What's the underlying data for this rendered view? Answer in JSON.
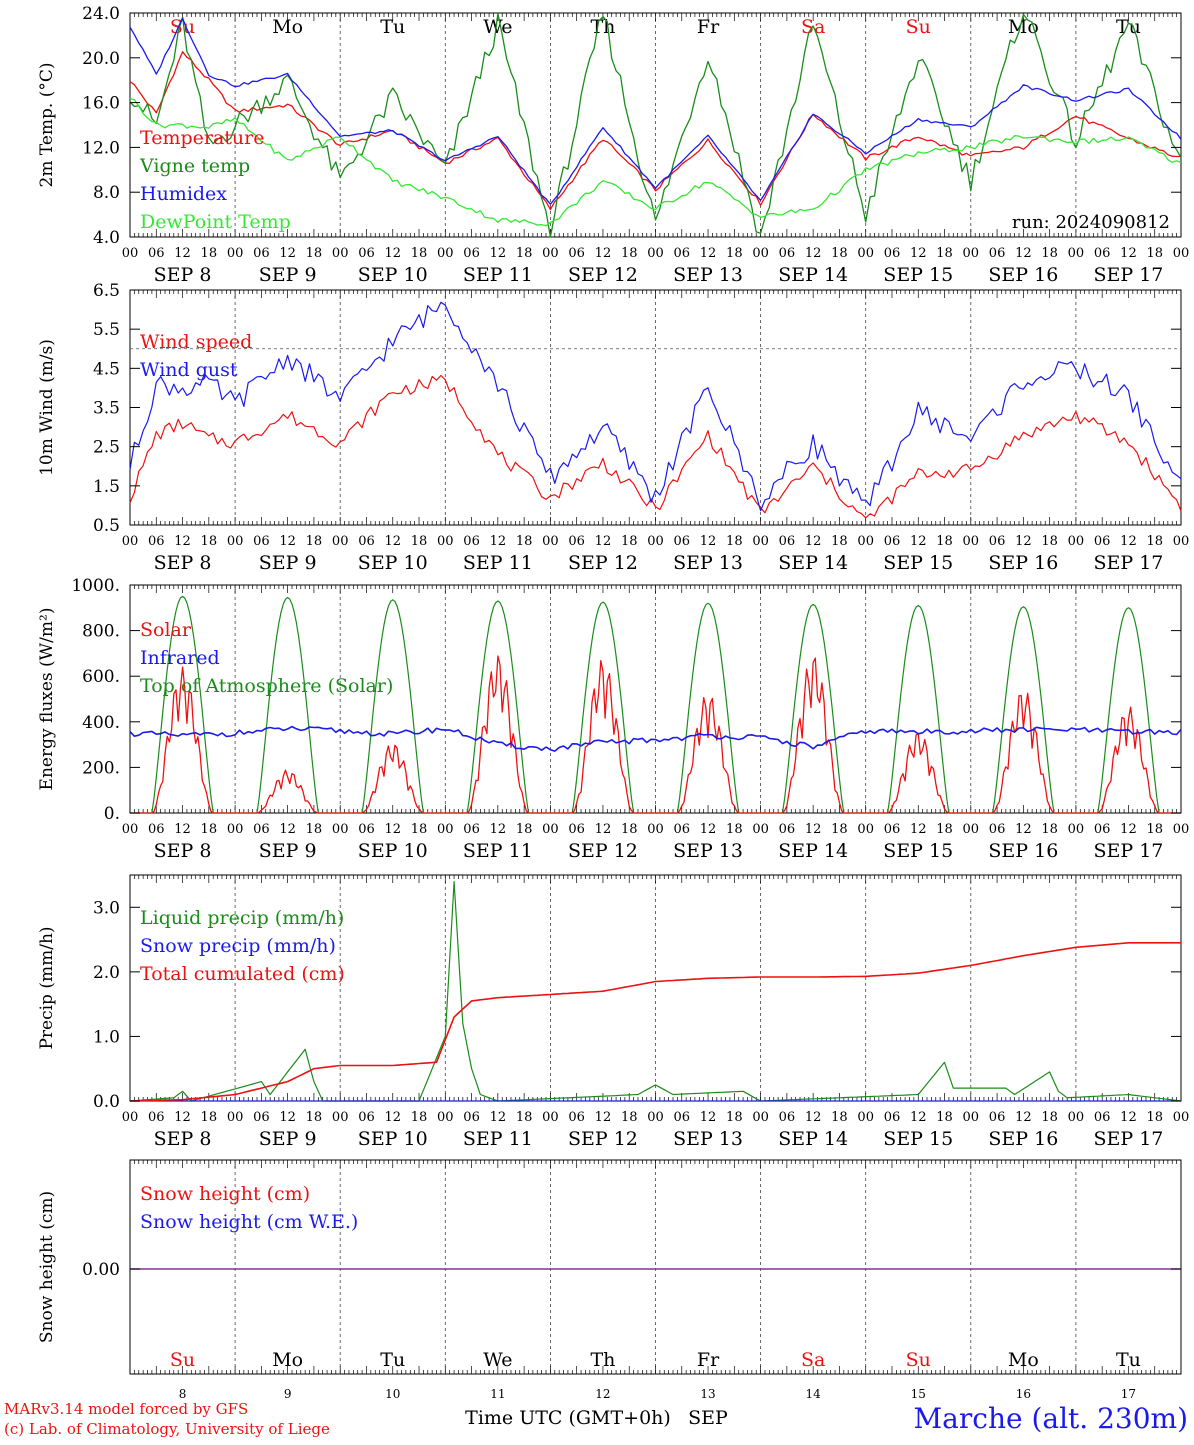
{
  "colors": {
    "red": "#ee1111",
    "green": "#1a8c1a",
    "blue": "#1a1aee",
    "lightgreen": "#33e833",
    "purple": "#8030a0",
    "axis": "#000000"
  },
  "day_abbrev": [
    "Su",
    "Mo",
    "Tu",
    "We",
    "Th",
    "Fr",
    "Sa",
    "Su",
    "Mo",
    "Tu"
  ],
  "day_abbrev_colors": [
    "red",
    "black",
    "black",
    "black",
    "black",
    "black",
    "red",
    "red",
    "black",
    "black"
  ],
  "date_labels": [
    "SEP  8",
    "SEP  9",
    "SEP 10",
    "SEP 11",
    "SEP 12",
    "SEP 13",
    "SEP 14",
    "SEP 15",
    "SEP 16",
    "SEP 17"
  ],
  "day_numbers": [
    "8",
    "9",
    "10",
    "11",
    "12",
    "13",
    "14",
    "15",
    "16",
    "17"
  ],
  "hour_ticks": [
    "00",
    "06",
    "12",
    "18"
  ],
  "hour_end": "00",
  "footer": {
    "credit_line1": "MARv3.14 model forced by GFS",
    "credit_line2": "(c) Lab. of Climatology, University of Liege",
    "time_axis_label": "Time UTC (GMT+0h)",
    "month_label": "SEP",
    "station": "Marche (alt. 230m)"
  },
  "chart_data": [
    {
      "type": "line",
      "ylabel": "2m Temp. (°C)",
      "ylim": [
        4,
        24
      ],
      "yticks": [
        "4.0",
        "8.0",
        "12.0",
        "16.0",
        "20.0",
        "24.0"
      ],
      "run_label": "run: 2024090812",
      "x_unit": "hours since SEP 8 00 UTC",
      "series": [
        {
          "name": "Temperature",
          "color": "red",
          "x": [
            0,
            6,
            12,
            18,
            24,
            36,
            48,
            60,
            72,
            84,
            96,
            108,
            120,
            132,
            144,
            156,
            168,
            180,
            192,
            204,
            216,
            228,
            240
          ],
          "values": [
            18,
            15,
            20.5,
            18,
            15.2,
            15.8,
            12.2,
            13.5,
            10.6,
            12.8,
            6.5,
            12.8,
            8.2,
            12.6,
            7,
            15,
            11,
            13,
            11.2,
            12,
            14.8,
            12.8,
            11
          ]
        },
        {
          "name": "Vigne temp",
          "color": "green",
          "x": [
            0,
            6,
            12,
            18,
            24,
            36,
            48,
            60,
            72,
            84,
            96,
            108,
            120,
            132,
            144,
            156,
            168,
            180,
            192,
            204,
            216,
            228,
            240
          ],
          "values": [
            17,
            14,
            23,
            12,
            14,
            18,
            9,
            16.5,
            10,
            23,
            4.5,
            24,
            5.2,
            20.5,
            4,
            23,
            6,
            20,
            9,
            24.5,
            12.5,
            23,
            10.5
          ]
        },
        {
          "name": "Humidex",
          "color": "blue",
          "x": [
            0,
            6,
            12,
            18,
            24,
            36,
            48,
            60,
            72,
            84,
            96,
            108,
            120,
            132,
            144,
            156,
            168,
            180,
            192,
            204,
            216,
            228,
            240
          ],
          "values": [
            22.8,
            18.5,
            23.5,
            18.5,
            17.5,
            18.5,
            13,
            13.5,
            10.8,
            13,
            6.8,
            13.8,
            8.4,
            13,
            7.2,
            15,
            11.5,
            14.5,
            13.8,
            17.5,
            16.2,
            17.2,
            12.8
          ]
        },
        {
          "name": "DewPoint Temp",
          "color": "lightgreen",
          "x": [
            0,
            6,
            12,
            18,
            24,
            36,
            48,
            60,
            72,
            84,
            96,
            108,
            120,
            132,
            144,
            156,
            168,
            180,
            192,
            204,
            216,
            228,
            240
          ],
          "values": [
            16.5,
            14,
            14,
            13.8,
            14.5,
            10.8,
            13,
            9,
            7.5,
            5.5,
            5.2,
            9,
            6.5,
            9,
            5.8,
            6.5,
            10,
            11.5,
            12,
            13,
            12.5,
            12.8,
            10.5
          ]
        }
      ]
    },
    {
      "type": "line",
      "ylabel": "10m Wind (m/s)",
      "ylim": [
        0.5,
        6.5
      ],
      "yticks": [
        "0.5",
        "1.5",
        "2.5",
        "3.5",
        "4.5",
        "5.5",
        "6.5"
      ],
      "reference_line": 5.0,
      "x_unit": "hours since SEP 8 00 UTC",
      "series": [
        {
          "name": "Wind speed",
          "color": "red",
          "x": [
            0,
            6,
            12,
            18,
            24,
            36,
            48,
            60,
            72,
            84,
            96,
            108,
            120,
            132,
            144,
            156,
            168,
            180,
            192,
            204,
            216,
            228,
            240
          ],
          "values": [
            1.2,
            2.8,
            3.1,
            2.7,
            2.6,
            3.3,
            2.6,
            3.9,
            4.2,
            2.3,
            1.2,
            2.1,
            0.9,
            2.8,
            0.8,
            2.0,
            0.6,
            1.8,
            1.9,
            2.8,
            3.3,
            2.6,
            1.0
          ]
        },
        {
          "name": "Wind gust",
          "color": "blue",
          "x": [
            0,
            6,
            12,
            18,
            24,
            36,
            48,
            60,
            72,
            84,
            96,
            108,
            120,
            132,
            144,
            156,
            168,
            180,
            192,
            204,
            216,
            228,
            240
          ],
          "values": [
            2.0,
            4.1,
            4.0,
            4.1,
            3.6,
            4.8,
            3.7,
            5.2,
            6.2,
            4.1,
            1.7,
            3.0,
            1.2,
            4.0,
            1.1,
            2.6,
            0.9,
            3.4,
            2.7,
            4.2,
            4.5,
            3.8,
            1.5
          ]
        }
      ]
    },
    {
      "type": "line",
      "ylabel": "Energy fluxes (W/m²)",
      "ylim": [
        0,
        1000
      ],
      "yticks": [
        "0.",
        "200.",
        "400.",
        "600.",
        "800.",
        "1000."
      ],
      "x_unit": "hours since SEP 8 00 UTC",
      "series": [
        {
          "name": "Solar",
          "color": "red",
          "daily_peaks": [
            640,
            190,
            310,
            700,
            680,
            530,
            700,
            360,
            550,
            470
          ]
        },
        {
          "name": "Infrared",
          "color": "blue",
          "x": [
            0,
            12,
            24,
            36,
            48,
            60,
            72,
            84,
            96,
            108,
            120,
            132,
            144,
            156,
            168,
            180,
            192,
            204,
            216,
            228,
            240
          ],
          "values": [
            350,
            340,
            350,
            370,
            360,
            345,
            370,
            300,
            280,
            310,
            320,
            340,
            330,
            290,
            360,
            355,
            360,
            365,
            365,
            355,
            355
          ]
        },
        {
          "name": "Top of Atmosphere (Solar)",
          "color": "green",
          "daily_peaks": [
            950,
            945,
            935,
            930,
            925,
            920,
            915,
            910,
            905,
            900
          ]
        }
      ]
    },
    {
      "type": "line",
      "ylabel": "Precip (mm/h)",
      "ylim": [
        0,
        3.5
      ],
      "yticks": [
        "0.0",
        "1.0",
        "2.0",
        "3.0"
      ],
      "x_unit": "hours since SEP 8 00 UTC",
      "series": [
        {
          "name": "Liquid precip (mm/h)",
          "color": "green",
          "x": [
            0,
            10,
            12,
            14,
            30,
            32,
            40,
            42,
            44,
            66,
            72,
            74,
            76,
            78,
            80,
            84,
            116,
            120,
            124,
            140,
            144,
            180,
            186,
            188,
            200,
            202,
            210,
            212,
            214,
            228,
            240
          ],
          "values": [
            0,
            0.05,
            0.15,
            0,
            0.3,
            0.1,
            0.8,
            0.3,
            0,
            0,
            1.0,
            3.4,
            1.2,
            0.5,
            0.1,
            0,
            0.1,
            0.25,
            0.1,
            0.15,
            0,
            0.1,
            0.6,
            0.2,
            0.2,
            0.1,
            0.45,
            0.15,
            0.05,
            0.1,
            0
          ]
        },
        {
          "name": "Snow precip (mm/h)",
          "color": "blue",
          "x": [
            0,
            240
          ],
          "values": [
            0,
            0
          ]
        },
        {
          "name": "Total cumulated (cm)",
          "color": "red",
          "x": [
            0,
            12,
            24,
            36,
            42,
            48,
            60,
            70,
            74,
            78,
            84,
            96,
            108,
            120,
            132,
            144,
            156,
            168,
            180,
            192,
            204,
            216,
            228,
            240
          ],
          "values": [
            0,
            0.02,
            0.1,
            0.3,
            0.5,
            0.55,
            0.55,
            0.6,
            1.3,
            1.55,
            1.6,
            1.65,
            1.7,
            1.85,
            1.9,
            1.92,
            1.92,
            1.93,
            1.98,
            2.1,
            2.25,
            2.38,
            2.45,
            2.45
          ]
        }
      ]
    },
    {
      "type": "line",
      "ylabel": "Snow height (cm)",
      "yticks": [
        "0.00"
      ],
      "x_unit": "hours since SEP 8 00 UTC",
      "series": [
        {
          "name": "Snow height (cm)",
          "color": "red",
          "x": [
            0,
            240
          ],
          "values": [
            0,
            0
          ]
        },
        {
          "name": "Snow height (cm W.E.)",
          "color": "blue",
          "x": [
            0,
            240
          ],
          "values": [
            0,
            0
          ]
        }
      ]
    }
  ]
}
